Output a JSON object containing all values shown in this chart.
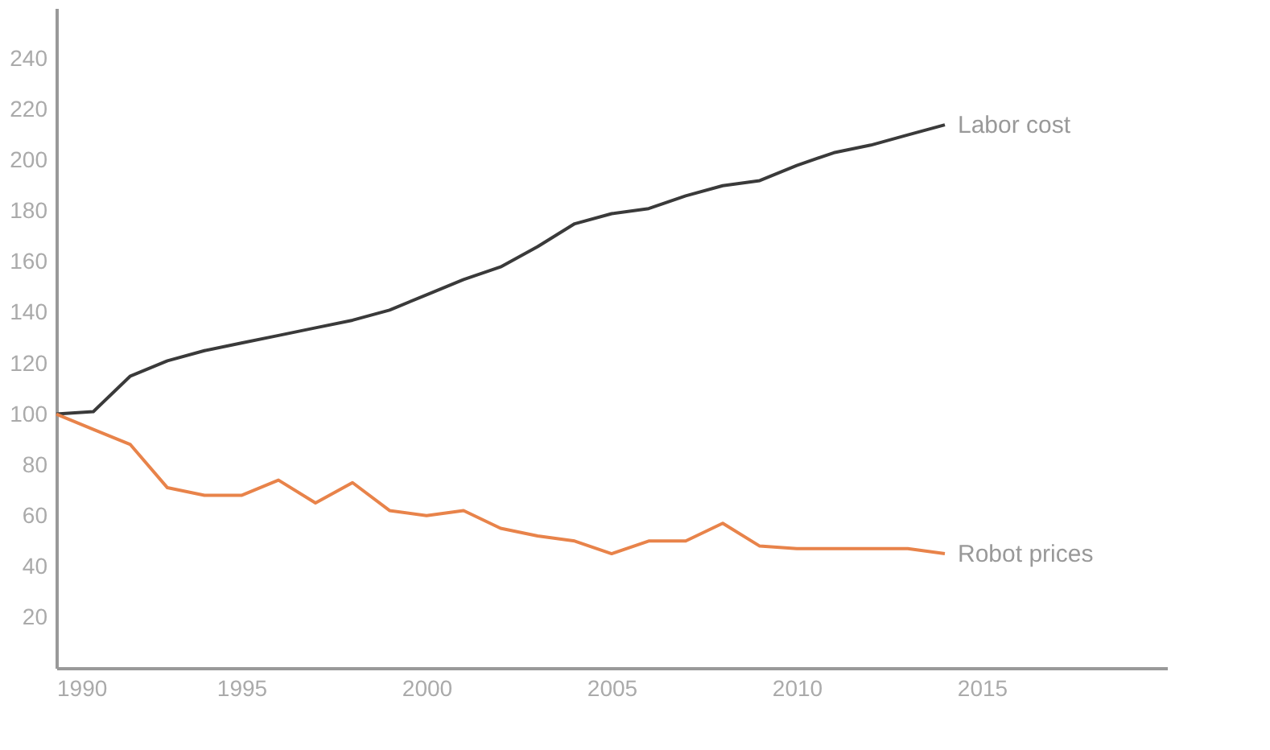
{
  "chart_data": {
    "type": "line",
    "x": [
      1990,
      1991,
      1992,
      1993,
      1994,
      1995,
      1996,
      1997,
      1998,
      1999,
      2000,
      2001,
      2002,
      2003,
      2004,
      2005,
      2006,
      2007,
      2008,
      2009,
      2010,
      2011,
      2012,
      2013,
      2014
    ],
    "series": [
      {
        "name": "Labor cost",
        "color": "#3a3a3a",
        "values": [
          100,
          101,
          115,
          121,
          125,
          128,
          131,
          134,
          137,
          141,
          147,
          153,
          158,
          166,
          175,
          179,
          181,
          186,
          190,
          192,
          198,
          203,
          206,
          210,
          214
        ]
      },
      {
        "name": "Robot prices",
        "color": "#e8834a",
        "values": [
          100,
          94,
          88,
          71,
          68,
          68,
          74,
          65,
          73,
          62,
          60,
          62,
          55,
          52,
          50,
          45,
          50,
          50,
          57,
          48,
          47,
          47,
          47,
          47,
          45
        ]
      }
    ],
    "xlim": [
      1990,
      2020
    ],
    "xticks": [
      1990,
      1995,
      2000,
      2005,
      2010,
      2015
    ],
    "ylim": [
      0,
      260
    ],
    "yticks": [
      20,
      40,
      60,
      80,
      100,
      120,
      140,
      160,
      180,
      200,
      220,
      240
    ],
    "grid": false,
    "marker": "none",
    "line_style": "solid"
  }
}
